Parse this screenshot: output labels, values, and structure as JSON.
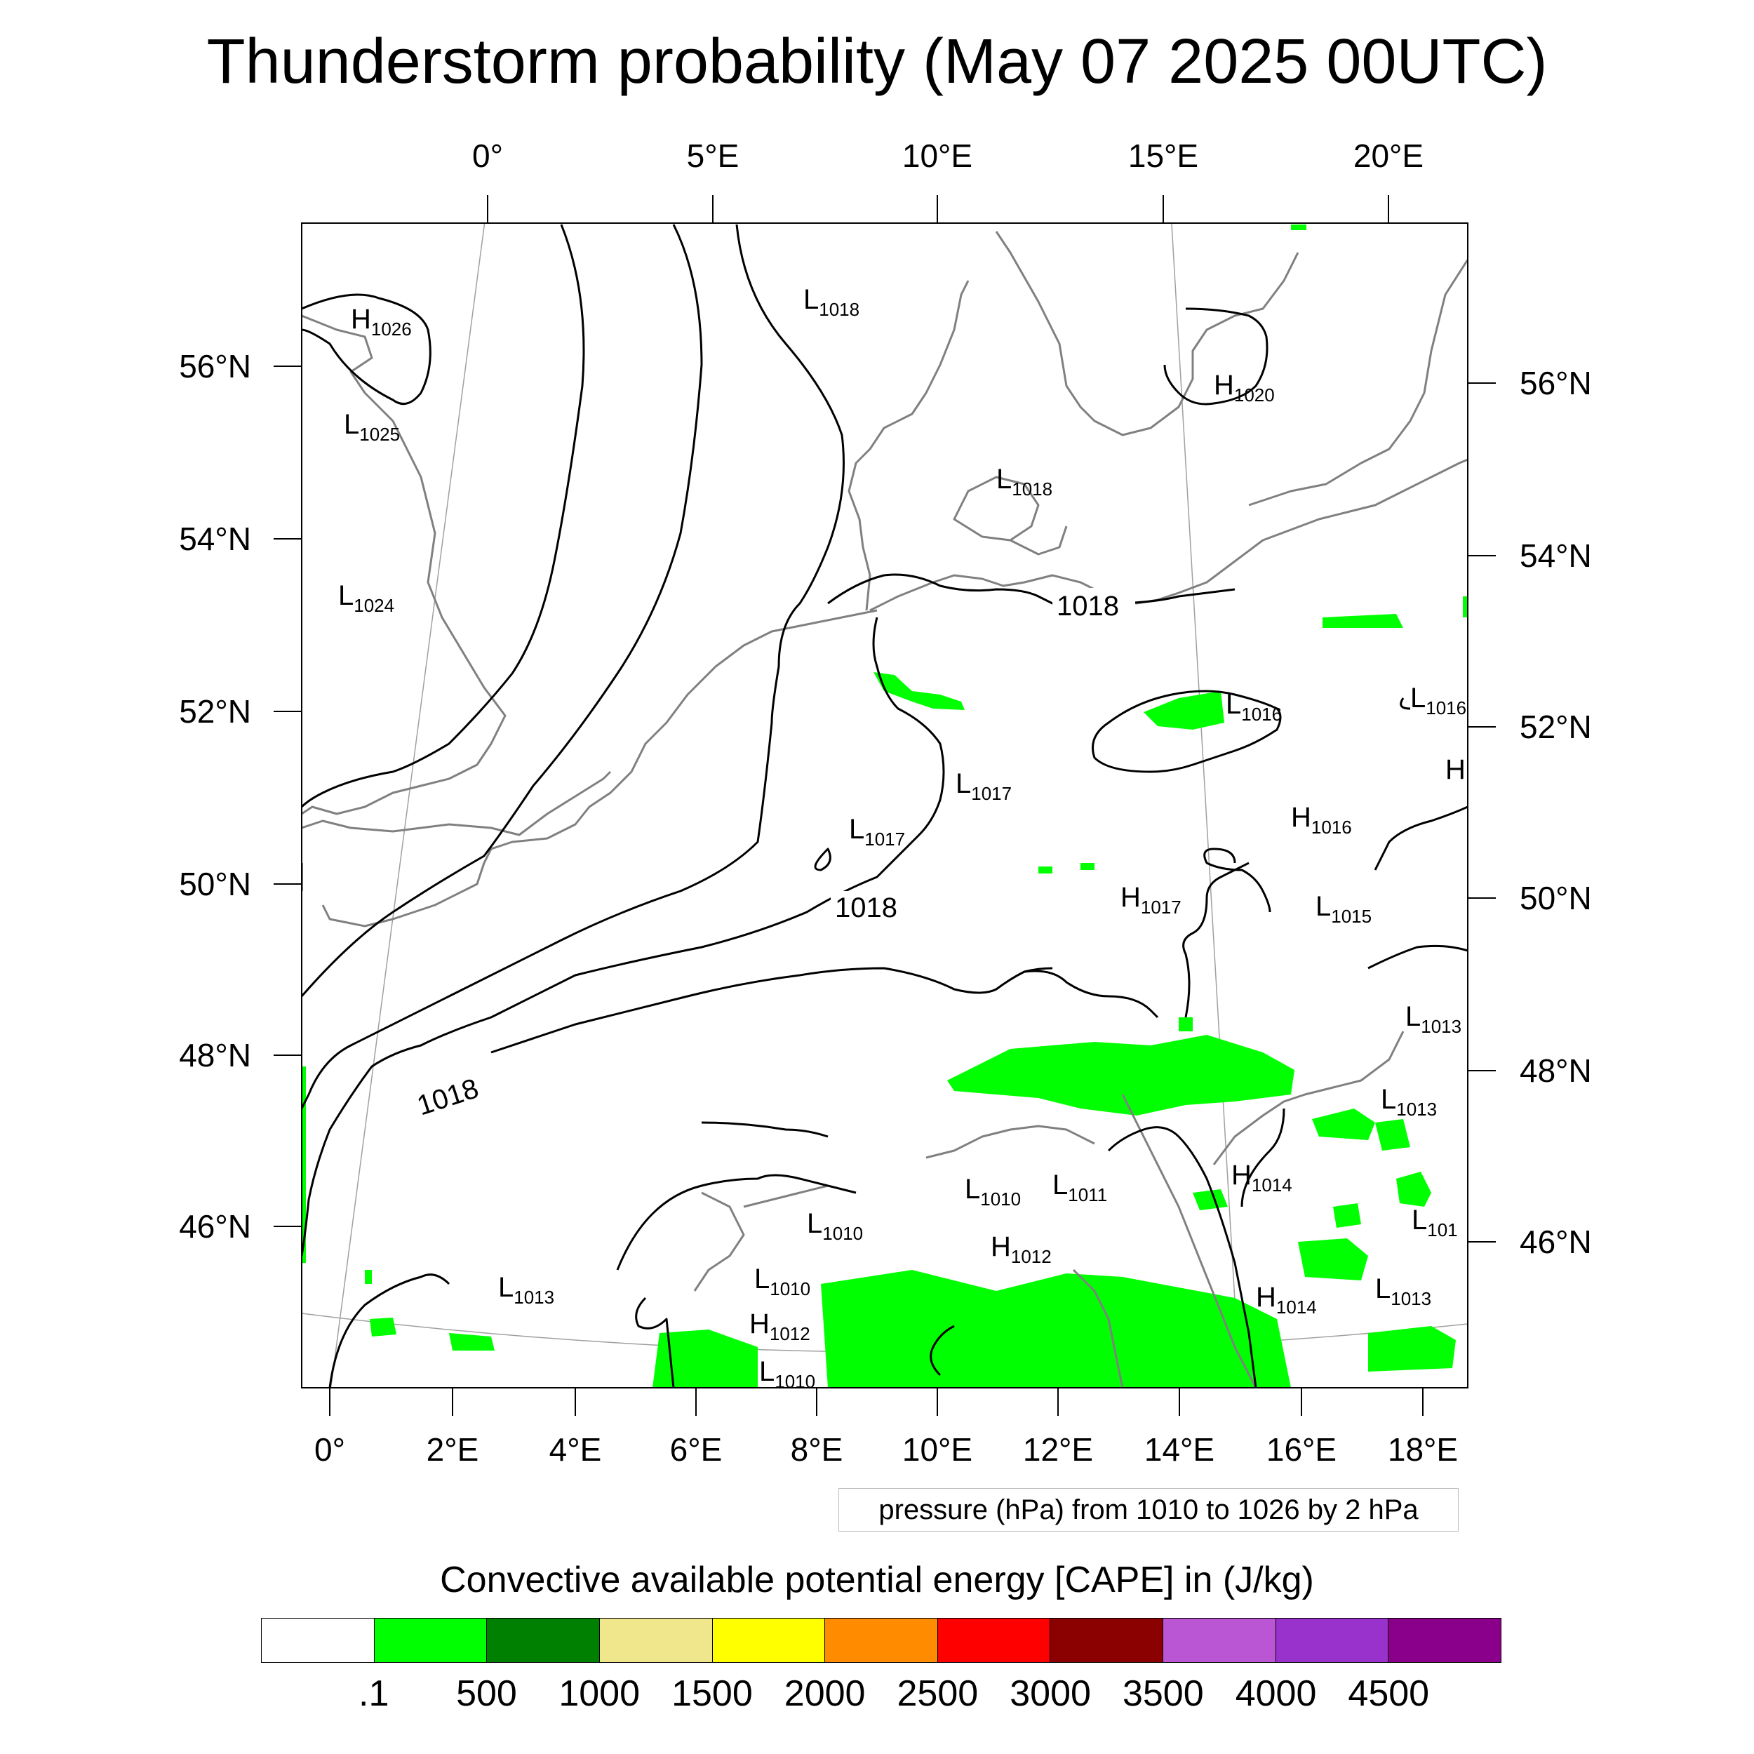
{
  "title": "Thunderstorm probability (May 07 2025 00UTC)",
  "top_lon_labels": [
    "0°",
    "5°E",
    "10°E",
    "15°E",
    "20°E"
  ],
  "bottom_lon_labels": [
    "0°",
    "2°E",
    "4°E",
    "6°E",
    "8°E",
    "10°E",
    "12°E",
    "14°E",
    "16°E",
    "18°E"
  ],
  "left_lat_labels": [
    "56°N",
    "54°N",
    "52°N",
    "50°N",
    "48°N",
    "46°N"
  ],
  "right_lat_labels": [
    "56°N",
    "54°N",
    "52°N",
    "50°N",
    "48°N",
    "46°N"
  ],
  "pressure_centers": [
    {
      "type": "H",
      "value": "1026"
    },
    {
      "type": "L",
      "value": "1025"
    },
    {
      "type": "L",
      "value": "1024"
    },
    {
      "type": "L",
      "value": "1018"
    },
    {
      "type": "H",
      "value": "1020"
    },
    {
      "type": "L",
      "value": "1018"
    },
    {
      "type": "L",
      "value": "1016"
    },
    {
      "type": "L",
      "value": "1016"
    },
    {
      "type": "H",
      "value": ""
    },
    {
      "type": "L",
      "value": "1017"
    },
    {
      "type": "L",
      "value": "1017"
    },
    {
      "type": "H",
      "value": "1016"
    },
    {
      "type": "H",
      "value": "1017"
    },
    {
      "type": "L",
      "value": "1015"
    },
    {
      "type": "L",
      "value": "1013"
    },
    {
      "type": "L",
      "value": "1013"
    },
    {
      "type": "H",
      "value": "1014"
    },
    {
      "type": "L",
      "value": "1010"
    },
    {
      "type": "L",
      "value": "1011"
    },
    {
      "type": "L",
      "value": "1010"
    },
    {
      "type": "H",
      "value": "1012"
    },
    {
      "type": "L",
      "value": "101"
    },
    {
      "type": "L",
      "value": "1010"
    },
    {
      "type": "L",
      "value": "1013"
    },
    {
      "type": "H",
      "value": "1014"
    },
    {
      "type": "L",
      "value": "1013"
    },
    {
      "type": "H",
      "value": "1012"
    },
    {
      "type": "L",
      "value": "1010"
    }
  ],
  "contour_labels": [
    "1018",
    "1018",
    "1018"
  ],
  "pressure_note": "pressure (hPa) from 1010 to 1026 by 2 hPa",
  "legend": {
    "title": "Convective available potential energy [CAPE] in (J/kg)",
    "colors": [
      "#ffffff",
      "#00ff00",
      "#008000",
      "#f0e68c",
      "#ffff00",
      "#ff8c00",
      "#ff0000",
      "#8b0000",
      "#ba55d3",
      "#9932cc",
      "#8b008b"
    ],
    "labels": [
      ".1",
      "500",
      "1000",
      "1500",
      "2000",
      "2500",
      "3000",
      "3500",
      "4000",
      "4500"
    ]
  },
  "colors": {
    "cape_low": "#00ff00",
    "coastline": "#808080",
    "isobar": "#000000",
    "graticule": "#a0a0a0"
  }
}
